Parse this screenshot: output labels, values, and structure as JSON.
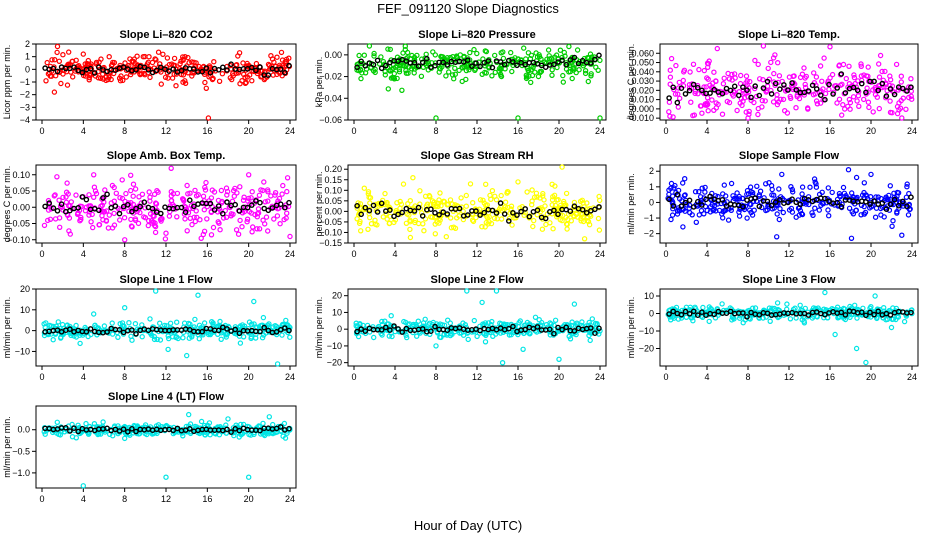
{
  "title": "FEF_091120  Slope Diagnostics",
  "xlabel": "Hour of Day (UTC)",
  "colors": {
    "red": "#ff0000",
    "green": "#00cc00",
    "magenta": "#ff00ff",
    "yellow": "#ffff00",
    "blue": "#0000ff",
    "cyan": "#00e5e5",
    "black": "#000000"
  },
  "chart_data": [
    {
      "type": "scatter",
      "title": "Slope Li–820 CO2",
      "ylabel": "Licor ppm per min.",
      "color": "red",
      "xlim": [
        0,
        24
      ],
      "ylim": [
        -4,
        2
      ],
      "xticks": [
        "0",
        "4",
        "8",
        "12",
        "16",
        "20",
        "24"
      ],
      "yticks": [
        "−4",
        "−3",
        "−2",
        "−1",
        "0",
        "1",
        "2"
      ],
      "spread": 0.5,
      "outliers": [
        [
          1.2,
          -1.8
        ],
        [
          1.5,
          1.8
        ],
        [
          4.0,
          1.2
        ],
        [
          7.6,
          -0.9
        ],
        [
          9.8,
          1.0
        ],
        [
          13.9,
          -1.1
        ],
        [
          15.9,
          -1.5
        ],
        [
          16.1,
          -3.9
        ],
        [
          6.5,
          1.0
        ],
        [
          20.3,
          -0.9
        ]
      ]
    },
    {
      "type": "scatter",
      "title": "Slope Li–820 Pressure",
      "ylabel": "kPa per min.",
      "color": "green",
      "xlim": [
        0,
        24
      ],
      "ylim": [
        -0.06,
        0.01
      ],
      "xticks": [
        "0",
        "4",
        "8",
        "12",
        "16",
        "20",
        "24"
      ],
      "yticks": [
        "−0.06",
        "−0.04",
        "−0.02",
        "0.00"
      ],
      "spread": 0.007,
      "outliers": [
        [
          8.0,
          -0.059
        ],
        [
          16.0,
          -0.059
        ],
        [
          24.0,
          -0.059
        ],
        [
          1.5,
          0.009
        ],
        [
          5.0,
          0.008
        ]
      ]
    },
    {
      "type": "scatter",
      "title": "Slope Li–820 Temp.",
      "ylabel": "degrees C per min.",
      "color": "magenta",
      "xlim": [
        0,
        24
      ],
      "ylim": [
        -0.012,
        0.07
      ],
      "xticks": [
        "0",
        "4",
        "8",
        "12",
        "16",
        "20",
        "24"
      ],
      "yticks": [
        "−0.010",
        "0.000",
        "0.010",
        "0.020",
        "0.030",
        "0.040",
        "0.050",
        "0.060"
      ],
      "spread": 0.015,
      "outliers": [
        [
          9.5,
          0.068
        ],
        [
          16.0,
          0.067
        ],
        [
          5.0,
          0.065
        ],
        [
          8.0,
          -0.012
        ],
        [
          23.0,
          -0.011
        ],
        [
          10.5,
          0.055
        ]
      ]
    },
    {
      "type": "scatter",
      "title": "Slope Amb. Box Temp.",
      "ylabel": "degrees C per min.",
      "color": "magenta",
      "xlim": [
        0,
        24
      ],
      "ylim": [
        -0.11,
        0.13
      ],
      "xticks": [
        "0",
        "4",
        "8",
        "12",
        "16",
        "20",
        "24"
      ],
      "yticks": [
        "−0.10",
        "−0.05",
        "0.00",
        "0.05",
        "0.10"
      ],
      "spread": 0.04,
      "outliers": [
        [
          8.0,
          -0.1
        ],
        [
          5.0,
          0.1
        ],
        [
          20.0,
          0.1
        ],
        [
          12.5,
          0.12
        ],
        [
          24.0,
          -0.09
        ]
      ]
    },
    {
      "type": "scatter",
      "title": "Slope Gas Stream RH",
      "ylabel": "percent per min.",
      "color": "yellow",
      "xlim": [
        0,
        24
      ],
      "ylim": [
        -0.15,
        0.22
      ],
      "xticks": [
        "0",
        "4",
        "8",
        "12",
        "16",
        "20",
        "24"
      ],
      "yticks": [
        "−0.15",
        "−0.10",
        "−0.05",
        "0.00",
        "0.05",
        "0.10",
        "0.15",
        "0.20"
      ],
      "spread": 0.045,
      "outliers": [
        [
          19.6,
          0.12
        ],
        [
          20.3,
          0.21
        ],
        [
          16.0,
          0.14
        ],
        [
          22.5,
          -0.13
        ],
        [
          9.0,
          -0.12
        ],
        [
          1.0,
          0.11
        ]
      ]
    },
    {
      "type": "scatter",
      "title": "Slope Sample Flow",
      "ylabel": "ml/min per min.",
      "color": "blue",
      "xlim": [
        0,
        24
      ],
      "ylim": [
        -2.6,
        2.4
      ],
      "xticks": [
        "0",
        "4",
        "8",
        "12",
        "16",
        "20",
        "24"
      ],
      "yticks": [
        "−2",
        "−1",
        "0",
        "1",
        "2"
      ],
      "spread": 0.55,
      "outliers": [
        [
          10.8,
          -2.2
        ],
        [
          11.3,
          1.8
        ],
        [
          17.8,
          2.1
        ],
        [
          18.1,
          -2.3
        ],
        [
          18.6,
          1.6
        ],
        [
          23.0,
          -2.1
        ],
        [
          14.5,
          1.5
        ],
        [
          20.0,
          1.8
        ]
      ]
    },
    {
      "type": "scatter",
      "title": "Slope Line 1 Flow",
      "ylabel": "ml/min per min.",
      "color": "cyan",
      "xlim": [
        0,
        24
      ],
      "ylim": [
        -17,
        20
      ],
      "xticks": [
        "0",
        "4",
        "8",
        "12",
        "16",
        "20",
        "24"
      ],
      "yticks": [
        "−10",
        "0",
        "10",
        "20"
      ],
      "spread": 2.0,
      "outliers": [
        [
          8.0,
          11.0
        ],
        [
          11.0,
          19.0
        ],
        [
          12.2,
          -9.0
        ],
        [
          15.1,
          17.0
        ],
        [
          19.2,
          -6.0
        ],
        [
          22.8,
          -16.0
        ],
        [
          5.0,
          8.0
        ],
        [
          20.5,
          14.0
        ],
        [
          14.0,
          -12.0
        ]
      ]
    },
    {
      "type": "scatter",
      "title": "Slope Line 2 Flow",
      "ylabel": "ml/min per min.",
      "color": "cyan",
      "xlim": [
        0,
        24
      ],
      "ylim": [
        -22,
        24
      ],
      "xticks": [
        "0",
        "4",
        "8",
        "12",
        "16",
        "20",
        "24"
      ],
      "yticks": [
        "−20",
        "−10",
        "0",
        "10",
        "20"
      ],
      "spread": 2.5,
      "outliers": [
        [
          11.0,
          23.0
        ],
        [
          12.5,
          16.0
        ],
        [
          13.9,
          23.0
        ],
        [
          20.0,
          -18.0
        ],
        [
          8.0,
          -10.0
        ],
        [
          16.5,
          -12.0
        ],
        [
          21.5,
          15.0
        ],
        [
          14.5,
          -20.0
        ]
      ]
    },
    {
      "type": "scatter",
      "title": "Slope Line 3 Flow",
      "ylabel": "ml/min per min.",
      "color": "cyan",
      "xlim": [
        0,
        24
      ],
      "ylim": [
        -30,
        14
      ],
      "xticks": [
        "0",
        "4",
        "8",
        "12",
        "16",
        "20",
        "24"
      ],
      "yticks": [
        "−20",
        "−10",
        "0",
        "10"
      ],
      "spread": 2.0,
      "outliers": [
        [
          15.5,
          12.0
        ],
        [
          19.5,
          -28.0
        ],
        [
          18.6,
          -20.0
        ],
        [
          16.5,
          -12.0
        ],
        [
          20.4,
          10.0
        ],
        [
          22.0,
          -8.0
        ]
      ]
    },
    {
      "type": "scatter",
      "title": "Slope Line 4 (LT) Flow",
      "ylabel": "ml/min per min.",
      "color": "cyan",
      "xlim": [
        0,
        24
      ],
      "ylim": [
        -1.35,
        0.55
      ],
      "xticks": [
        "0",
        "4",
        "8",
        "12",
        "16",
        "20",
        "24"
      ],
      "yticks": [
        "−1.0",
        "−0.5",
        "0.0"
      ],
      "spread": 0.07,
      "outliers": [
        [
          4.0,
          -1.3
        ],
        [
          12.0,
          -1.1
        ],
        [
          20.0,
          -1.1
        ],
        [
          14.2,
          0.35
        ],
        [
          22.0,
          0.3
        ],
        [
          8.0,
          -0.2
        ],
        [
          18.0,
          0.25
        ]
      ]
    }
  ]
}
